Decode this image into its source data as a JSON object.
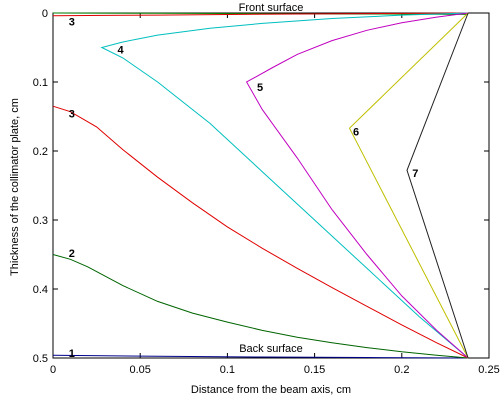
{
  "chart_data": {
    "type": "line",
    "xlabel": "Distance from the beam axis,  cm",
    "ylabel": "Thickness of the collimator plate,  cm",
    "xlim": [
      0,
      0.25
    ],
    "ylim": [
      0,
      0.5
    ],
    "y_inverted": true,
    "grid": false,
    "xticks": [
      0,
      0.05,
      0.1,
      0.15,
      0.2,
      0.25
    ],
    "yticks": [
      0,
      0.1,
      0.2,
      0.3,
      0.4,
      0.5
    ],
    "xtick_labels": [
      "0",
      "0.05",
      "0.1",
      "0.15",
      "0.2",
      "0.25"
    ],
    "ytick_labels": [
      "0",
      "0.1",
      "0.2",
      "0.3",
      "0.4",
      "0.5"
    ],
    "annotations": [
      {
        "text": "Front surface",
        "x": 0.125,
        "y": -0.012
      },
      {
        "text": "Back surface",
        "x": 0.125,
        "y": 0.488
      }
    ],
    "series": [
      {
        "label": "1",
        "color": "#00008b",
        "label_at": [
          0.009,
          0.493
        ],
        "x": [
          0,
          0.06,
          0.12,
          0.18,
          0.238
        ],
        "y": [
          0.496,
          0.4975,
          0.4985,
          0.4993,
          0.5
        ]
      },
      {
        "label": "1",
        "color": "#008000",
        "label_at": null,
        "x": [
          0,
          0.06,
          0.12,
          0.18,
          0.238
        ],
        "y": [
          0,
          0.0005,
          0.001,
          0.0015,
          0.002
        ]
      },
      {
        "label": "2",
        "color": "#006400",
        "label_at": [
          0.009,
          0.348
        ],
        "x": [
          0,
          0.01,
          0.02,
          0.04,
          0.06,
          0.08,
          0.1,
          0.12,
          0.14,
          0.16,
          0.18,
          0.2,
          0.22,
          0.238
        ],
        "y": [
          0.35,
          0.357,
          0.368,
          0.395,
          0.418,
          0.435,
          0.448,
          0.46,
          0.47,
          0.478,
          0.485,
          0.491,
          0.496,
          0.5
        ]
      },
      {
        "label": "3",
        "color": "#e00000",
        "label_at": [
          0.009,
          0.146
        ],
        "x": [
          0,
          0.01,
          0.025,
          0.04,
          0.06,
          0.08,
          0.1,
          0.12,
          0.14,
          0.16,
          0.18,
          0.2,
          0.22,
          0.238
        ],
        "y": [
          0.135,
          0.143,
          0.165,
          0.198,
          0.238,
          0.275,
          0.31,
          0.341,
          0.37,
          0.398,
          0.425,
          0.452,
          0.478,
          0.5
        ]
      },
      {
        "label": "3",
        "color": "#e00000",
        "label_at": [
          0.009,
          0.012
        ],
        "x": [
          0,
          0.03,
          0.06,
          0.1,
          0.14,
          0.18,
          0.238
        ],
        "y": [
          0.004,
          0.0035,
          0.003,
          0.0022,
          0.0015,
          0.0008,
          0
        ]
      },
      {
        "label": "4",
        "color": "#00bfbf",
        "label_at": [
          0.037,
          0.053
        ],
        "x": [
          0.238,
          0.2,
          0.16,
          0.12,
          0.09,
          0.06,
          0.04,
          0.028,
          0.04,
          0.06,
          0.09,
          0.12,
          0.15,
          0.18,
          0.21,
          0.238
        ],
        "y": [
          0,
          0.003,
          0.008,
          0.015,
          0.022,
          0.032,
          0.042,
          0.05,
          0.065,
          0.1,
          0.16,
          0.23,
          0.3,
          0.37,
          0.44,
          0.5
        ]
      },
      {
        "label": "5",
        "color": "#c000c0",
        "label_at": [
          0.117,
          0.107
        ],
        "x": [
          0.238,
          0.22,
          0.2,
          0.18,
          0.16,
          0.14,
          0.126,
          0.111,
          0.12,
          0.14,
          0.16,
          0.18,
          0.2,
          0.22,
          0.238
        ],
        "y": [
          0,
          0.006,
          0.014,
          0.025,
          0.04,
          0.06,
          0.079,
          0.1,
          0.14,
          0.21,
          0.285,
          0.35,
          0.41,
          0.46,
          0.5
        ]
      },
      {
        "label": "6",
        "color": "#bfbf00",
        "label_at": [
          0.172,
          0.172
        ],
        "x": [
          0.238,
          0.17,
          0.238
        ],
        "y": [
          0,
          0.167,
          0.5
        ]
      },
      {
        "label": "7",
        "color": "#202020",
        "label_at": [
          0.206,
          0.232
        ],
        "x": [
          0.238,
          0.203,
          0.238
        ],
        "y": [
          0,
          0.228,
          0.5
        ]
      }
    ]
  }
}
